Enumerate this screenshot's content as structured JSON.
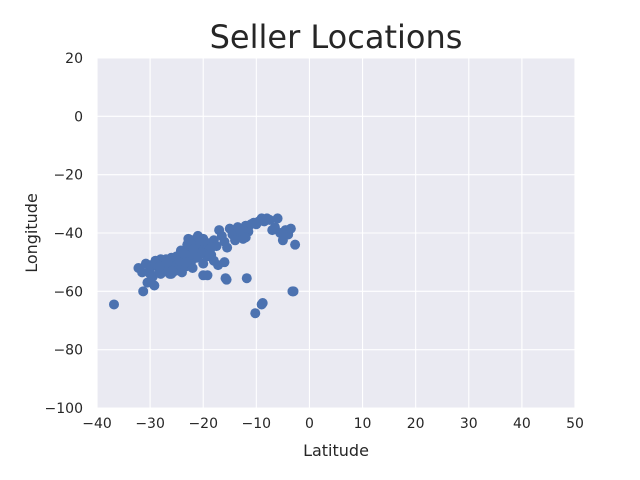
{
  "chart_data": {
    "type": "scatter",
    "title": "Seller Locations",
    "xlabel": "Latitude",
    "ylabel": "Longitude",
    "xlim": [
      -40,
      50
    ],
    "ylim": [
      -100,
      20
    ],
    "xticks": [
      -40,
      -30,
      -20,
      -10,
      0,
      10,
      20,
      30,
      40,
      50
    ],
    "yticks": [
      20,
      0,
      -20,
      -40,
      -60,
      -80,
      -100
    ],
    "tick_labels_x": [
      "−40",
      "−30",
      "−20",
      "−10",
      "0",
      "10",
      "20",
      "30",
      "40",
      "50"
    ],
    "tick_labels_y": [
      "20",
      "0",
      "−20",
      "−40",
      "−60",
      "−80",
      "−100"
    ],
    "grid": true,
    "point_color": "#4c72b0",
    "background_color": "#eaeaf2",
    "series": [
      {
        "x": [
          -36.8,
          -32.2,
          -31.5,
          -31.3,
          -30.5,
          -30.0,
          -29.8,
          -29.5,
          -29.2,
          -29.0,
          -28.8,
          -28.5,
          -28.3,
          -28.0,
          -27.8,
          -27.5,
          -27.2,
          -27.0,
          -26.8,
          -26.5,
          -26.3,
          -26.0,
          -25.8,
          -25.5,
          -25.3,
          -25.0,
          -24.8,
          -24.5,
          -24.3,
          -24.0,
          -23.8,
          -23.5,
          -23.3,
          -23.0,
          -22.8,
          -22.5,
          -22.3,
          -22.0,
          -21.8,
          -21.5,
          -21.3,
          -21.0,
          -20.8,
          -20.5,
          -20.3,
          -20.0,
          -19.8,
          -19.5,
          -19.3,
          -19.0,
          -18.8,
          -18.5,
          -18.0,
          -17.5,
          -17.0,
          -16.5,
          -16.0,
          -15.5,
          -15.0,
          -14.5,
          -14.0,
          -13.5,
          -13.0,
          -12.5,
          -12.0,
          -11.5,
          -11.0,
          -10.5,
          -10.0,
          -9.5,
          -9.0,
          -8.5,
          -8.0,
          -7.5,
          -7.0,
          -6.5,
          -6.0,
          -5.5,
          -5.0,
          -4.5,
          -4.0,
          -3.5,
          -3.0,
          -2.7,
          -28.0,
          -26.0,
          -24.0,
          -22.0,
          -20.0,
          -18.0,
          -25.0,
          -23.0,
          -21.0,
          -19.0,
          -27.0,
          -29.0,
          -24.5,
          -22.5,
          -20.5,
          -18.5,
          -30.8,
          -28.2,
          -25.8,
          -23.2,
          -21.2,
          -15.8,
          -15.6,
          -11.8,
          -10.2,
          -8.8,
          -3.2,
          -9.0,
          -12.0,
          -13.0,
          -16.0,
          -30.0,
          -20.0,
          -21.5,
          -22.8,
          -26.8,
          -24.2,
          -22.2,
          -20.2,
          -19.2,
          -17.2,
          -23.8,
          -21.8
        ],
        "y": [
          -64.5,
          -52.0,
          -53.5,
          -60.0,
          -57.0,
          -52.0,
          -51.0,
          -55.0,
          -58.0,
          -49.5,
          -50.0,
          -51.5,
          -53.5,
          -49.0,
          -50.5,
          -52.0,
          -53.0,
          -49.0,
          -50.5,
          -52.5,
          -54.0,
          -48.5,
          -50.0,
          -51.5,
          -53.0,
          -48.0,
          -49.5,
          -51.0,
          -52.5,
          -46.5,
          -48.0,
          -50.0,
          -51.5,
          -44.0,
          -46.0,
          -48.0,
          -50.0,
          -42.5,
          -44.5,
          -46.5,
          -48.5,
          -41.0,
          -43.0,
          -45.0,
          -47.0,
          -42.0,
          -44.0,
          -46.0,
          -48.0,
          -43.5,
          -45.5,
          -47.5,
          -42.5,
          -44.5,
          -39.0,
          -41.0,
          -43.0,
          -45.0,
          -38.5,
          -40.5,
          -42.5,
          -38.0,
          -40.0,
          -42.0,
          -37.5,
          -39.5,
          -37.0,
          -36.5,
          -37.0,
          -36.0,
          -35.0,
          -36.0,
          -35.0,
          -35.5,
          -39.0,
          -38.0,
          -35.0,
          -40.0,
          -42.5,
          -39.0,
          -40.5,
          -38.5,
          -60.0,
          -44.0,
          -54.0,
          -54.0,
          -53.5,
          -52.0,
          -50.5,
          -49.5,
          -51.0,
          -49.5,
          -48.0,
          -47.0,
          -52.5,
          -50.5,
          -49.5,
          -47.5,
          -46.5,
          -45.0,
          -50.5,
          -51.5,
          -53.0,
          -50.0,
          -43.5,
          -55.5,
          -56.0,
          -55.5,
          -67.5,
          -64.0,
          -60.0,
          -64.5,
          -41.5,
          -39.0,
          -50.0,
          -54.0,
          -54.5,
          -44.0,
          -42.0,
          -50.0,
          -46.0,
          -44.0,
          -42.5,
          -54.5,
          -51.0,
          -47.0,
          -45.5
        ]
      }
    ]
  }
}
